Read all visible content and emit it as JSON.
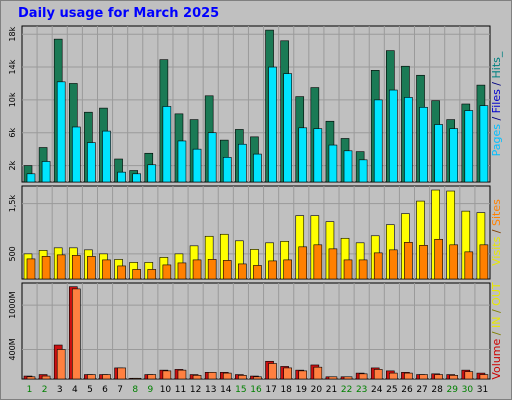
{
  "chart_data": {
    "type": "bar",
    "title": "Daily usage for March 2025",
    "x": [
      "1",
      "2",
      "3",
      "4",
      "5",
      "6",
      "7",
      "8",
      "9",
      "10",
      "11",
      "12",
      "13",
      "14",
      "15",
      "16",
      "17",
      "18",
      "19",
      "20",
      "21",
      "22",
      "23",
      "24",
      "25",
      "26",
      "27",
      "28",
      "29",
      "30",
      "31"
    ],
    "weekend_days": [
      "1",
      "2",
      "8",
      "9",
      "15",
      "16",
      "22",
      "23",
      "29",
      "30"
    ],
    "colors": {
      "weekday": "#008000",
      "weekend": "#008000"
    },
    "panels": [
      {
        "id": "pages-files-hits",
        "ylim": [
          0,
          19000
        ],
        "y_ticks": [
          2000,
          6000,
          10000,
          14000,
          18000
        ],
        "y_tick_labels": [
          "2k",
          "6k",
          "10k",
          "14k",
          "18k"
        ],
        "legend": [
          {
            "text": "Pages",
            "color": "#00bfff"
          },
          {
            "text": " / ",
            "color": "#000080"
          },
          {
            "text": "Files",
            "color": "#0000cd"
          },
          {
            "text": " / ",
            "color": "#000080"
          },
          {
            "text": "Hits",
            "color": "#008080"
          },
          {
            "text": "_",
            "color": "#008080"
          }
        ],
        "series": [
          {
            "color": "#1a7a55",
            "values": [
              2000,
              4200,
              17400,
              12000,
              8500,
              9000,
              2800,
              1400,
              3500,
              14900,
              8300,
              7600,
              10500,
              5100,
              6400,
              5500,
              18500,
              17200,
              10400,
              11500,
              7400,
              5300,
              3700,
              13600,
              16000,
              14100,
              13000,
              9900,
              7600,
              9500,
              11800
            ]
          },
          {
            "color": "#00e5ff",
            "values": [
              1000,
              2500,
              12200,
              6700,
              4800,
              6200,
              1200,
              1000,
              2100,
              9200,
              5000,
              4000,
              6000,
              3000,
              4600,
              3400,
              14000,
              13200,
              6600,
              6500,
              4500,
              3800,
              2700,
              10000,
              11200,
              10300,
              9100,
              7000,
              6500,
              8700,
              9300
            ]
          }
        ]
      },
      {
        "id": "visits-sites",
        "ylim": [
          0,
          1850
        ],
        "y_ticks": [
          500,
          1500
        ],
        "y_tick_labels": [
          "500",
          "1,5k"
        ],
        "legend": [
          {
            "text": "Visits",
            "color": "#e8e800"
          },
          {
            "text": " / ",
            "color": "#804000"
          },
          {
            "text": "Sites",
            "color": "#ff8000"
          }
        ],
        "series": [
          {
            "color": "#ffff00",
            "values": [
              500,
              570,
              620,
              620,
              580,
              500,
              390,
              330,
              330,
              430,
              500,
              660,
              850,
              890,
              760,
              590,
              720,
              750,
              1260,
              1260,
              1140,
              810,
              720,
              860,
              1080,
              1300,
              1550,
              1770,
              1750,
              1350,
              1320
            ]
          },
          {
            "color": "#ff8000",
            "values": [
              400,
              450,
              480,
              470,
              450,
              380,
              260,
              190,
              190,
              280,
              320,
              380,
              390,
              370,
              300,
              270,
              360,
              380,
              640,
              680,
              600,
              380,
              380,
              520,
              580,
              730,
              670,
              790,
              680,
              540,
              680
            ]
          }
        ]
      },
      {
        "id": "volume",
        "ylim": [
          0,
          1300
        ],
        "y_ticks": [
          400,
          1000
        ],
        "y_tick_labels": [
          "400M",
          "1000M"
        ],
        "legend": [
          {
            "text": "Volume",
            "color": "#cc0000"
          },
          {
            "text": " / ",
            "color": "#808000"
          },
          {
            "text": "IN",
            "color": "#e8e800"
          },
          {
            "text": " / ",
            "color": "#808000"
          },
          {
            "text": "OUT",
            "color": "#e8e800"
          }
        ],
        "series": [
          {
            "color": "#cc1010",
            "values": [
              40,
              60,
              460,
              1250,
              60,
              60,
              150,
              10,
              60,
              120,
              130,
              60,
              90,
              90,
              60,
              40,
              240,
              170,
              120,
              190,
              30,
              30,
              80,
              150,
              110,
              90,
              60,
              70,
              60,
              120,
              80
            ]
          },
          {
            "color": "#ff8040",
            "values": [
              30,
              40,
              400,
              1220,
              60,
              60,
              150,
              10,
              60,
              110,
              120,
              50,
              90,
              80,
              50,
              30,
              210,
              150,
              110,
              160,
              30,
              30,
              70,
              130,
              80,
              80,
              60,
              60,
              50,
              100,
              60
            ]
          }
        ]
      }
    ]
  }
}
